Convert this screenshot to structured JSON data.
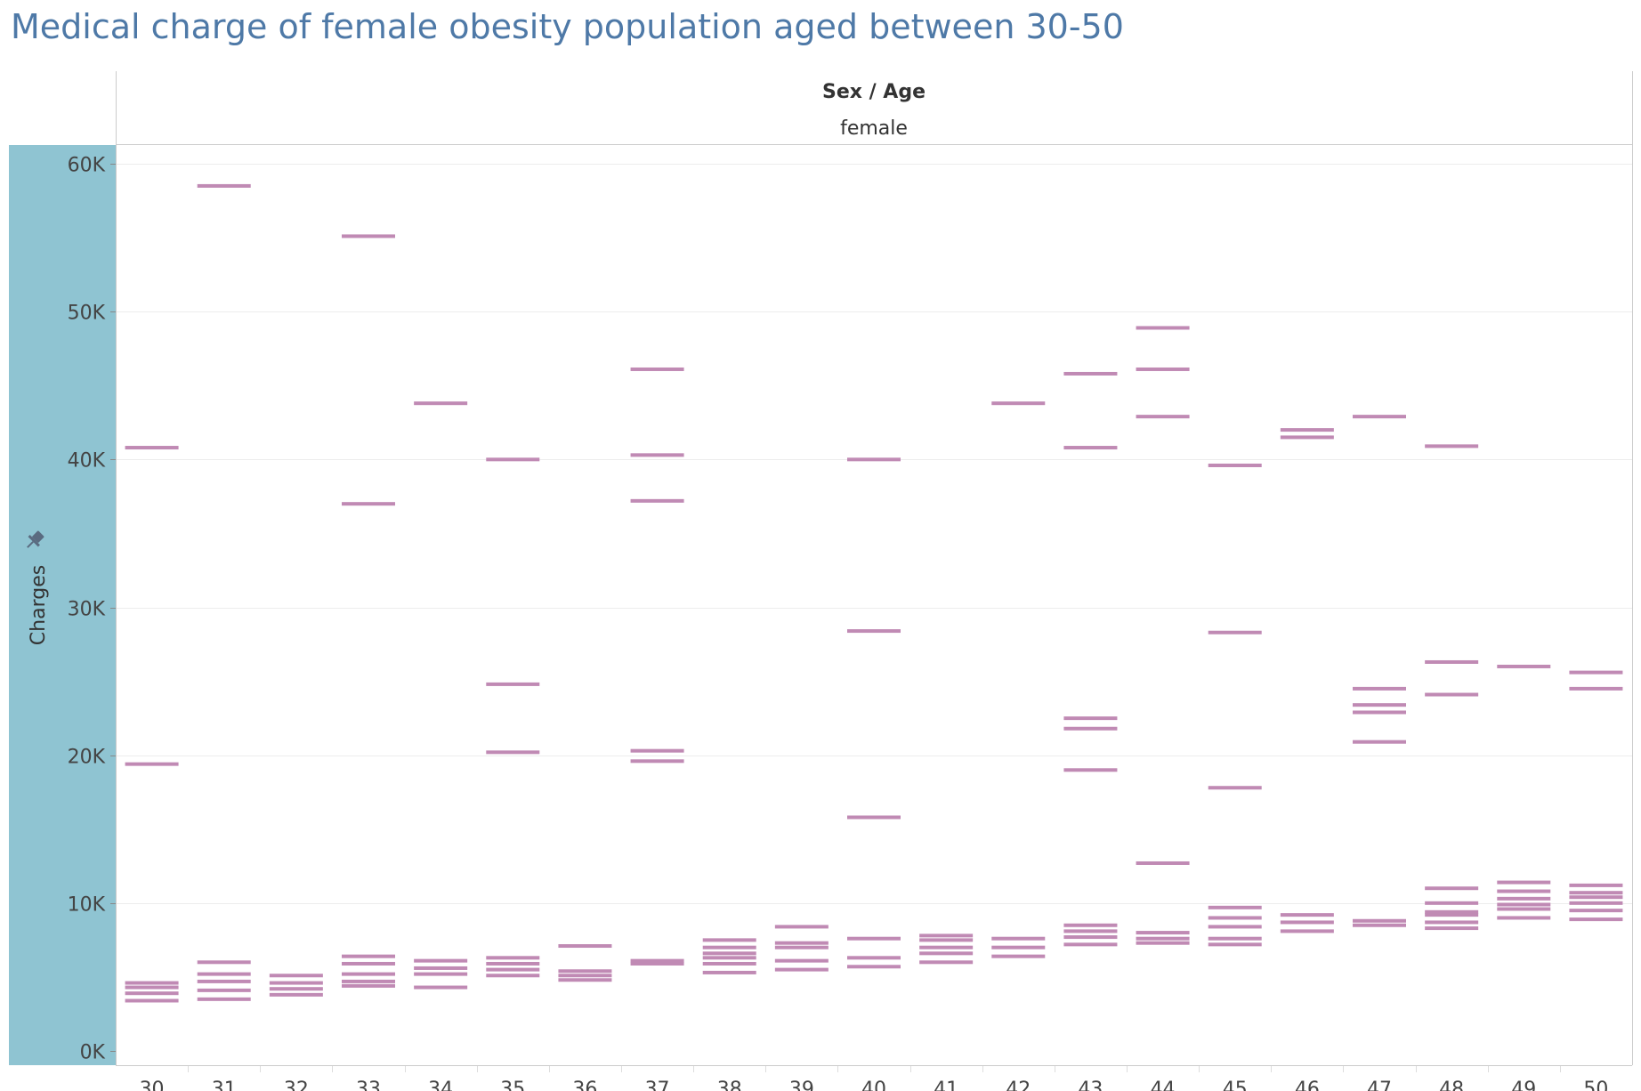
{
  "chart_data": {
    "type": "scatter",
    "mark_shape": "horizontal-dash",
    "title": "Medical charge of female obesity population aged between 30-50",
    "column_header": "Sex / Age",
    "facet_label": "female",
    "ylabel": "Charges",
    "ylim": [
      0,
      62000
    ],
    "y_ticks": [
      "60K",
      "50K",
      "40K",
      "30K",
      "20K",
      "10K",
      "0K"
    ],
    "y_tick_values": [
      60000,
      50000,
      40000,
      30000,
      20000,
      10000,
      0
    ],
    "grid": true,
    "colors": {
      "mark": "#c08ab4",
      "title": "#4e79a7",
      "axis_band": "#8fc4d2",
      "grid": "#ececec"
    },
    "categories": [
      "30",
      "31",
      "32",
      "33",
      "34",
      "35",
      "36",
      "37",
      "38",
      "39",
      "40",
      "41",
      "42",
      "43",
      "44",
      "45",
      "46",
      "47",
      "48",
      "49",
      "50"
    ],
    "points": [
      [
        3400,
        3900,
        4300,
        4600,
        19400,
        40800
      ],
      [
        3500,
        4100,
        4700,
        5200,
        6000,
        58500
      ],
      [
        3800,
        4200,
        4600,
        5100
      ],
      [
        4400,
        4700,
        5200,
        5900,
        6400,
        37000,
        55100
      ],
      [
        4300,
        5200,
        5600,
        6100,
        43800
      ],
      [
        5100,
        5500,
        5900,
        6300,
        20200,
        24800,
        40000
      ],
      [
        4800,
        5100,
        5400,
        7100
      ],
      [
        5900,
        6100,
        19600,
        20300,
        37200,
        40300,
        46100
      ],
      [
        5300,
        5900,
        6300,
        6600,
        7000,
        7500
      ],
      [
        5500,
        6100,
        7000,
        7300,
        8400
      ],
      [
        5700,
        6300,
        7600,
        15800,
        28400,
        40000
      ],
      [
        6000,
        6600,
        7000,
        7500,
        7800
      ],
      [
        6400,
        7000,
        7600,
        43800
      ],
      [
        7200,
        7700,
        8100,
        8500,
        19000,
        21800,
        22500,
        40800,
        45800
      ],
      [
        7300,
        7600,
        8000,
        12700,
        42900,
        46100,
        48900
      ],
      [
        7200,
        7600,
        8400,
        9000,
        9700,
        17800,
        28300,
        39600
      ],
      [
        8100,
        8700,
        9200,
        41500,
        42000
      ],
      [
        8500,
        8800,
        20900,
        22900,
        23400,
        24500,
        42900
      ],
      [
        8300,
        8700,
        9200,
        9400,
        10000,
        11000,
        24100,
        26300,
        40900
      ],
      [
        9000,
        9600,
        9900,
        10300,
        10800,
        11400,
        26000
      ],
      [
        8900,
        9500,
        10000,
        10400,
        10700,
        11200,
        24500,
        25600
      ]
    ]
  }
}
